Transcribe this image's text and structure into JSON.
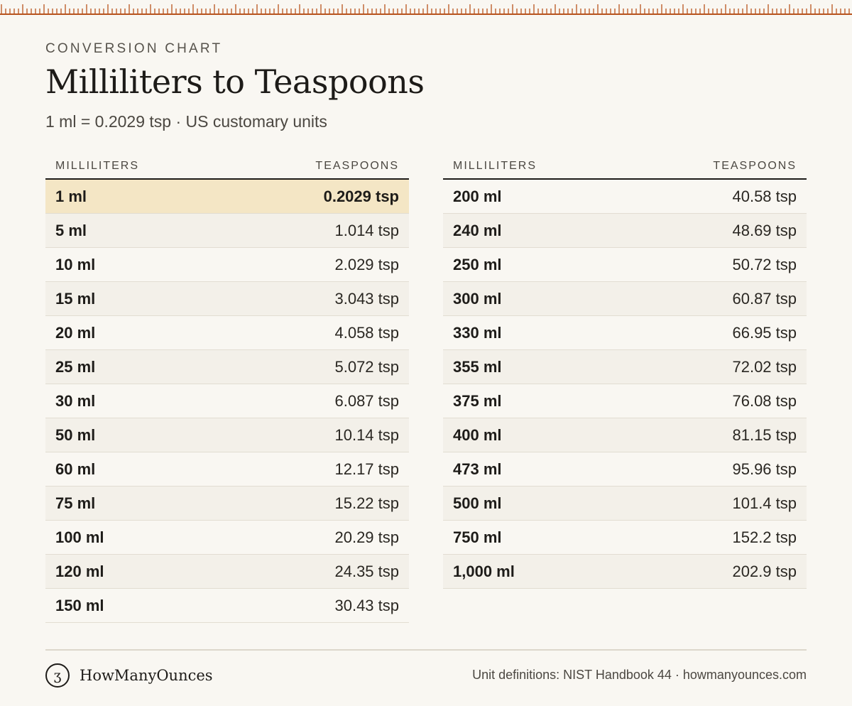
{
  "header": {
    "eyebrow": "CONVERSION CHART",
    "title": "Milliliters to Teaspoons",
    "subtitle": "1 ml = 0.2029 tsp · US customary units"
  },
  "colors": {
    "ruler": "#b8541e",
    "highlight": "#f4e6c5",
    "stripe": "#f3f0e9",
    "background": "#f9f7f2"
  },
  "table_left": {
    "col_ml": "MILLILITERS",
    "col_tsp": "TEASPOONS",
    "rows": [
      {
        "ml": "1 ml",
        "tsp": "0.2029 tsp",
        "highlight": true
      },
      {
        "ml": "5 ml",
        "tsp": "1.014 tsp"
      },
      {
        "ml": "10 ml",
        "tsp": "2.029 tsp"
      },
      {
        "ml": "15 ml",
        "tsp": "3.043 tsp"
      },
      {
        "ml": "20 ml",
        "tsp": "4.058 tsp"
      },
      {
        "ml": "25 ml",
        "tsp": "5.072 tsp"
      },
      {
        "ml": "30 ml",
        "tsp": "6.087 tsp"
      },
      {
        "ml": "50 ml",
        "tsp": "10.14 tsp"
      },
      {
        "ml": "60 ml",
        "tsp": "12.17 tsp"
      },
      {
        "ml": "75 ml",
        "tsp": "15.22 tsp"
      },
      {
        "ml": "100 ml",
        "tsp": "20.29 tsp"
      },
      {
        "ml": "120 ml",
        "tsp": "24.35 tsp"
      },
      {
        "ml": "150 ml",
        "tsp": "30.43 tsp"
      }
    ]
  },
  "table_right": {
    "col_ml": "MILLILITERS",
    "col_tsp": "TEASPOONS",
    "rows": [
      {
        "ml": "200 ml",
        "tsp": "40.58 tsp"
      },
      {
        "ml": "240 ml",
        "tsp": "48.69 tsp"
      },
      {
        "ml": "250 ml",
        "tsp": "50.72 tsp"
      },
      {
        "ml": "300 ml",
        "tsp": "60.87 tsp"
      },
      {
        "ml": "330 ml",
        "tsp": "66.95 tsp"
      },
      {
        "ml": "355 ml",
        "tsp": "72.02 tsp"
      },
      {
        "ml": "375 ml",
        "tsp": "76.08 tsp"
      },
      {
        "ml": "400 ml",
        "tsp": "81.15 tsp"
      },
      {
        "ml": "473 ml",
        "tsp": "95.96 tsp"
      },
      {
        "ml": "500 ml",
        "tsp": "101.4 tsp"
      },
      {
        "ml": "750 ml",
        "tsp": "152.2 tsp"
      },
      {
        "ml": "1,000 ml",
        "tsp": "202.9 tsp"
      }
    ]
  },
  "footer": {
    "brand_mark": "ʒ",
    "brand_name": "HowManyOunces",
    "source": "Unit definitions: NIST Handbook 44 · howmanyounces.com"
  }
}
